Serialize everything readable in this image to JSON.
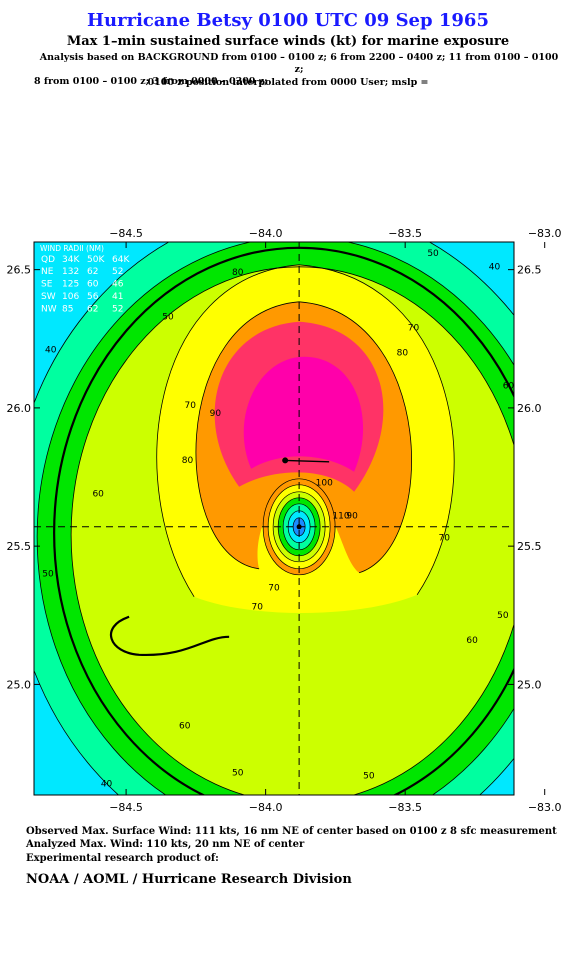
{
  "header": {
    "title": "Hurricane Betsy 0100 UTC 09 Sep 1965",
    "subtitle": "Max 1–min sustained surface winds (kt) for marine exposure",
    "analysis_line1": "Analysis based on  BACKGROUND from 0100 – 0100 z;  6 from 2200 – 0400 z;  11 from 0100 – 0100 z;",
    "analysis_line2": "8 from 0100 – 0100 z;  3 from 0000 – 0300 z;",
    "position_line": "0100 z position interpolated from 0000 User; mslp ="
  },
  "wind_radii": {
    "title": "WIND RADII (NM)",
    "header": [
      "QD",
      "34K",
      "50K",
      "64K"
    ],
    "rows": [
      [
        "NE",
        "132",
        "62",
        "52"
      ],
      [
        "SE",
        "125",
        "60",
        "46"
      ],
      [
        "SW",
        "106",
        "56",
        "41"
      ],
      [
        "NW",
        "85",
        "62",
        "52"
      ]
    ]
  },
  "colors": {
    "c30": "#00e8ff",
    "c40": "#00ffa0",
    "c50": "#00e600",
    "c60": "#ccff00",
    "c70": "#ffff00",
    "c80": "#ff9900",
    "c90": "#ff3366",
    "c100": "#ff00aa",
    "core": "#1b8cff",
    "title": "#1a1aff"
  },
  "chart_data": {
    "type": "contour",
    "x_ticks": [
      "−84.5",
      "−84.0",
      "−83.5",
      "−83.0"
    ],
    "x_tick_values": [
      -84.5,
      -84.0,
      -83.5,
      -83.0
    ],
    "y_ticks": [
      "26.5",
      "26.0",
      "25.5",
      "25.0"
    ],
    "y_tick_values": [
      26.5,
      26.0,
      25.5,
      25.0
    ],
    "xlim": [
      -84.83,
      -83.11
    ],
    "ylim": [
      24.6,
      26.6
    ],
    "center": {
      "lon": -83.88,
      "lat": 25.57
    },
    "max_wind_marker": {
      "lon": -83.93,
      "lat": 25.81
    },
    "contour_labels": [
      {
        "text": "80",
        "lon": -84.1,
        "lat": 26.48
      },
      {
        "text": "50",
        "lon": -83.4,
        "lat": 26.55
      },
      {
        "text": "40",
        "lon": -83.18,
        "lat": 26.5
      },
      {
        "text": "50",
        "lon": -84.35,
        "lat": 26.32
      },
      {
        "text": "70",
        "lon": -83.47,
        "lat": 26.28
      },
      {
        "text": "80",
        "lon": -83.51,
        "lat": 26.19
      },
      {
        "text": "40",
        "lon": -84.77,
        "lat": 26.2
      },
      {
        "text": "70",
        "lon": -84.27,
        "lat": 26.0
      },
      {
        "text": "90",
        "lon": -84.18,
        "lat": 25.97
      },
      {
        "text": "60",
        "lon": -83.13,
        "lat": 26.07
      },
      {
        "text": "80",
        "lon": -84.28,
        "lat": 25.8
      },
      {
        "text": "100",
        "lon": -83.79,
        "lat": 25.72
      },
      {
        "text": "60",
        "lon": -84.6,
        "lat": 25.68
      },
      {
        "text": "110",
        "lon": -83.73,
        "lat": 25.6
      },
      {
        "text": "90",
        "lon": -83.69,
        "lat": 25.6
      },
      {
        "text": "70",
        "lon": -83.36,
        "lat": 25.52
      },
      {
        "text": "70",
        "lon": -83.97,
        "lat": 25.34
      },
      {
        "text": "70",
        "lon": -84.03,
        "lat": 25.27
      },
      {
        "text": "50",
        "lon": -84.78,
        "lat": 25.39
      },
      {
        "text": "50",
        "lon": -83.15,
        "lat": 25.24
      },
      {
        "text": "60",
        "lon": -83.26,
        "lat": 25.15
      },
      {
        "text": "60",
        "lon": -84.29,
        "lat": 24.84
      },
      {
        "text": "50",
        "lon": -84.1,
        "lat": 24.67
      },
      {
        "text": "50",
        "lon": -83.63,
        "lat": 24.66
      },
      {
        "text": "40",
        "lon": -84.57,
        "lat": 24.63
      }
    ]
  },
  "footer": {
    "observed": "Observed Max. Surface Wind: 111 kts, 16 nm NE of center based on 0100 z 8 sfc measurement",
    "analyzed": "Analyzed Max. Wind: 110 kts, 20 nm NE of center",
    "experimental": "Experimental research product of:",
    "org": "NOAA / AOML / Hurricane Research Division"
  }
}
